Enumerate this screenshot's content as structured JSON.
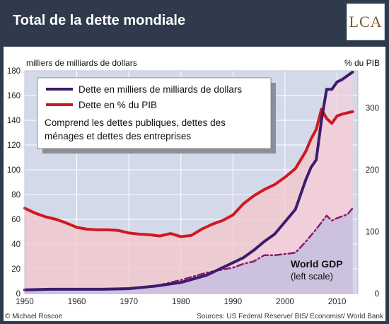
{
  "header": {
    "title": "Total de la dette mondiale",
    "logo_text": "LCA"
  },
  "chart_data": {
    "type": "line",
    "title": "",
    "ylabel_left": "milliers de milliards de dollars",
    "ylabel_right": "% du PIB",
    "xlim": [
      1950,
      2014
    ],
    "ylim_left": [
      0,
      180
    ],
    "ylim_right": [
      0,
      360
    ],
    "x_ticks": [
      1950,
      1960,
      1970,
      1980,
      1990,
      2000,
      2010
    ],
    "y_ticks_left": [
      0,
      20,
      40,
      60,
      80,
      100,
      120,
      140,
      160,
      180
    ],
    "y_ticks_right": [
      0,
      100,
      200,
      300
    ],
    "grid": true,
    "legend_position": "top-left",
    "legend_note": "Comprend les dettes publiques, dettes des ménages et dettes des entreprises",
    "annotation": {
      "title": "World GDP",
      "subtitle": "(left scale)"
    },
    "series": [
      {
        "name": "Dette en milliers de milliards de dollars",
        "axis": "left",
        "color": "#3b1c6e",
        "x": [
          1950,
          1955,
          1960,
          1965,
          1970,
          1975,
          1980,
          1985,
          1990,
          1992,
          1994,
          1996,
          1998,
          2000,
          2002,
          2004,
          2005,
          2006,
          2007,
          2008,
          2009,
          2010,
          2011,
          2012,
          2013
        ],
        "values": [
          3,
          3.5,
          3.5,
          3.5,
          4,
          6,
          9,
          15,
          25,
          29,
          35,
          42,
          48,
          58,
          68,
          92,
          102,
          108,
          140,
          165,
          165,
          171,
          173,
          176,
          179
        ]
      },
      {
        "name": "Dette en % du PIB",
        "axis": "right",
        "color": "#d01820",
        "x": [
          1950,
          1952,
          1954,
          1956,
          1958,
          1960,
          1962,
          1964,
          1966,
          1968,
          1970,
          1972,
          1974,
          1976,
          1978,
          1980,
          1982,
          1984,
          1986,
          1988,
          1990,
          1992,
          1994,
          1996,
          1998,
          2000,
          2002,
          2004,
          2005,
          2006,
          2007,
          2008,
          2009,
          2010,
          2011,
          2012,
          2013
        ],
        "values": [
          138,
          130,
          124,
          120,
          114,
          107,
          104,
          103,
          103,
          102,
          98,
          96,
          95,
          93,
          97,
          92,
          94,
          104,
          112,
          118,
          127,
          145,
          158,
          168,
          176,
          188,
          202,
          230,
          250,
          265,
          298,
          283,
          275,
          287,
          290,
          292,
          294
        ]
      },
      {
        "name": "World GDP",
        "axis": "left",
        "color": "#8c1a6a",
        "x": [
          1950,
          1955,
          1960,
          1965,
          1970,
          1975,
          1980,
          1985,
          1990,
          1992,
          1994,
          1996,
          1998,
          2000,
          2002,
          2004,
          2006,
          2008,
          2009,
          2010,
          2012,
          2013
        ],
        "values": [
          3,
          3.2,
          3.5,
          3.5,
          3.5,
          6,
          11,
          17,
          21,
          24,
          26,
          31,
          31,
          32,
          33,
          42,
          52,
          63,
          59,
          61,
          64,
          69
        ]
      }
    ],
    "footer_left": "© Michael Roscoe",
    "footer_right": "Sources: US Federal Reserve/ BIS/ Economist/ World Bank"
  }
}
